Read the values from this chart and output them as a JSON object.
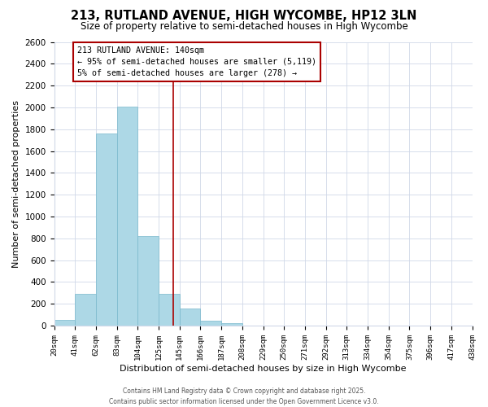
{
  "title": "213, RUTLAND AVENUE, HIGH WYCOMBE, HP12 3LN",
  "subtitle": "Size of property relative to semi-detached houses in High Wycombe",
  "xlabel": "Distribution of semi-detached houses by size in High Wycombe",
  "ylabel": "Number of semi-detached properties",
  "bar_edges": [
    20,
    41,
    62,
    83,
    104,
    125,
    146,
    167,
    188,
    209,
    230,
    251,
    272,
    293,
    314,
    335,
    356,
    377,
    398,
    419,
    440
  ],
  "bar_heights": [
    50,
    290,
    1760,
    2010,
    820,
    290,
    155,
    45,
    20,
    0,
    0,
    0,
    0,
    0,
    0,
    0,
    0,
    0,
    0,
    0
  ],
  "bar_color": "#add8e6",
  "bar_edgecolor": "#7ab8cc",
  "vline_x": 140,
  "vline_color": "#aa0000",
  "annotation_title": "213 RUTLAND AVENUE: 140sqm",
  "annotation_line1": "← 95% of semi-detached houses are smaller (5,119)",
  "annotation_line2": "5% of semi-detached houses are larger (278) →",
  "annotation_box_color": "white",
  "annotation_box_edgecolor": "#aa0000",
  "xlim_min": 20,
  "xlim_max": 440,
  "ylim_min": 0,
  "ylim_max": 2600,
  "tick_labels": [
    "20sqm",
    "41sqm",
    "62sqm",
    "83sqm",
    "104sqm",
    "125sqm",
    "145sqm",
    "166sqm",
    "187sqm",
    "208sqm",
    "229sqm",
    "250sqm",
    "271sqm",
    "292sqm",
    "313sqm",
    "334sqm",
    "354sqm",
    "375sqm",
    "396sqm",
    "417sqm",
    "438sqm"
  ],
  "yticks": [
    0,
    200,
    400,
    600,
    800,
    1000,
    1200,
    1400,
    1600,
    1800,
    2000,
    2200,
    2400,
    2600
  ],
  "footer1": "Contains HM Land Registry data © Crown copyright and database right 2025.",
  "footer2": "Contains public sector information licensed under the Open Government Licence v3.0."
}
